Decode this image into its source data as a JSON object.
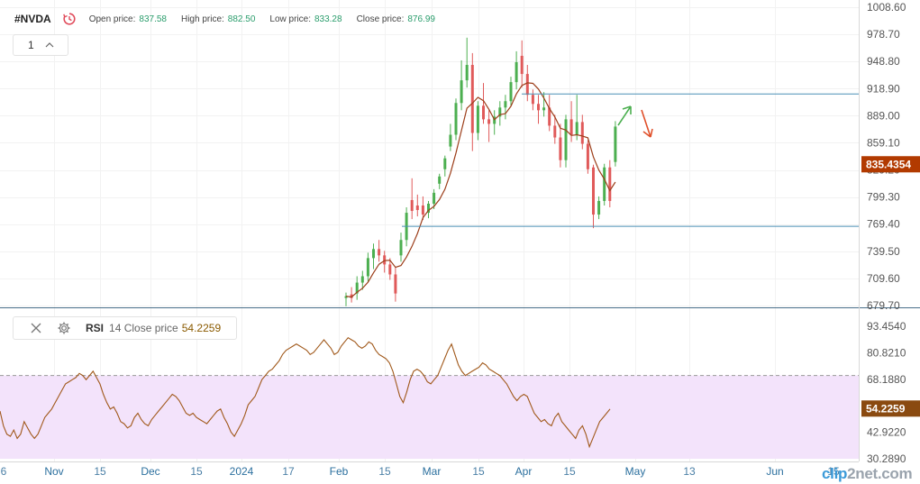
{
  "header": {
    "symbol": "#NVDA",
    "open_label": "Open price:",
    "open_value": "837.58",
    "high_label": "High price:",
    "high_value": "882.50",
    "low_label": "Low price:",
    "low_value": "833.28",
    "close_label": "Close price:",
    "close_value": "876.99"
  },
  "interval": {
    "value": "1"
  },
  "rsi_legend": {
    "name": "RSI",
    "params": "14 Close price",
    "value": "54.2259"
  },
  "brand": {
    "part1": "clip",
    "part2": "2net.com"
  },
  "colors": {
    "up": "#4caf50",
    "down": "#e05a5a",
    "ma": "#9c3e1a",
    "price_tag": "#b23a00",
    "rsi_line": "#a0581a",
    "rsi_band": "#f3e3fb",
    "hline": "#4a8fb5"
  },
  "chart_data": [
    {
      "type": "candlestick",
      "price_axis_ticks": [
        "1008.60",
        "978.70",
        "948.80",
        "918.90",
        "889.00",
        "859.10",
        "829.20",
        "799.30",
        "769.40",
        "739.50",
        "709.60",
        "679.70"
      ],
      "ylim": [
        679.7,
        1008.6
      ],
      "last_price_tag": "835.4354",
      "horizontal_lines": [
        913,
        767
      ],
      "annotations": [
        "up-arrow",
        "down-arrow"
      ],
      "candles": [
        {
          "o": 688,
          "h": 694,
          "l": 679,
          "c": 690
        },
        {
          "o": 692,
          "h": 700,
          "l": 683,
          "c": 688
        },
        {
          "o": 693,
          "h": 712,
          "l": 686,
          "c": 705
        },
        {
          "o": 705,
          "h": 718,
          "l": 697,
          "c": 712
        },
        {
          "o": 712,
          "h": 738,
          "l": 705,
          "c": 732
        },
        {
          "o": 732,
          "h": 748,
          "l": 720,
          "c": 742
        },
        {
          "o": 742,
          "h": 752,
          "l": 728,
          "c": 735
        },
        {
          "o": 735,
          "h": 740,
          "l": 716,
          "c": 725
        },
        {
          "o": 725,
          "h": 732,
          "l": 708,
          "c": 714
        },
        {
          "o": 714,
          "h": 722,
          "l": 684,
          "c": 693
        },
        {
          "o": 735,
          "h": 760,
          "l": 728,
          "c": 752
        },
        {
          "o": 752,
          "h": 788,
          "l": 745,
          "c": 782
        },
        {
          "o": 796,
          "h": 820,
          "l": 775,
          "c": 784
        },
        {
          "o": 790,
          "h": 802,
          "l": 778,
          "c": 785
        },
        {
          "o": 790,
          "h": 800,
          "l": 774,
          "c": 780
        },
        {
          "o": 782,
          "h": 795,
          "l": 776,
          "c": 792
        },
        {
          "o": 792,
          "h": 808,
          "l": 786,
          "c": 804
        },
        {
          "o": 814,
          "h": 825,
          "l": 808,
          "c": 822
        },
        {
          "o": 830,
          "h": 845,
          "l": 822,
          "c": 842
        },
        {
          "o": 855,
          "h": 880,
          "l": 850,
          "c": 868
        },
        {
          "o": 868,
          "h": 908,
          "l": 862,
          "c": 903
        },
        {
          "o": 903,
          "h": 950,
          "l": 895,
          "c": 928
        },
        {
          "o": 928,
          "h": 975,
          "l": 920,
          "c": 945
        },
        {
          "o": 945,
          "h": 958,
          "l": 850,
          "c": 870
        },
        {
          "o": 870,
          "h": 905,
          "l": 862,
          "c": 900
        },
        {
          "o": 900,
          "h": 925,
          "l": 880,
          "c": 885
        },
        {
          "o": 885,
          "h": 895,
          "l": 860,
          "c": 880
        },
        {
          "o": 880,
          "h": 895,
          "l": 868,
          "c": 888
        },
        {
          "o": 888,
          "h": 905,
          "l": 878,
          "c": 898
        },
        {
          "o": 898,
          "h": 912,
          "l": 885,
          "c": 905
        },
        {
          "o": 905,
          "h": 932,
          "l": 900,
          "c": 926
        },
        {
          "o": 926,
          "h": 960,
          "l": 918,
          "c": 948
        },
        {
          "o": 955,
          "h": 972,
          "l": 920,
          "c": 935
        },
        {
          "o": 935,
          "h": 945,
          "l": 905,
          "c": 912
        },
        {
          "o": 912,
          "h": 918,
          "l": 895,
          "c": 902
        },
        {
          "o": 902,
          "h": 912,
          "l": 880,
          "c": 895
        },
        {
          "o": 895,
          "h": 915,
          "l": 888,
          "c": 898
        },
        {
          "o": 898,
          "h": 912,
          "l": 872,
          "c": 878
        },
        {
          "o": 878,
          "h": 890,
          "l": 858,
          "c": 865
        },
        {
          "o": 865,
          "h": 880,
          "l": 832,
          "c": 840
        },
        {
          "o": 840,
          "h": 890,
          "l": 832,
          "c": 885
        },
        {
          "o": 885,
          "h": 905,
          "l": 860,
          "c": 868
        },
        {
          "o": 868,
          "h": 912,
          "l": 862,
          "c": 882
        },
        {
          "o": 882,
          "h": 890,
          "l": 852,
          "c": 858
        },
        {
          "o": 858,
          "h": 862,
          "l": 825,
          "c": 830
        },
        {
          "o": 832,
          "h": 835,
          "l": 765,
          "c": 780
        },
        {
          "o": 780,
          "h": 800,
          "l": 775,
          "c": 795
        },
        {
          "o": 795,
          "h": 836,
          "l": 790,
          "c": 832
        },
        {
          "o": 832,
          "h": 840,
          "l": 788,
          "c": 795
        },
        {
          "o": 838,
          "h": 883,
          "l": 833,
          "c": 877
        }
      ]
    },
    {
      "type": "line",
      "name": "RSI",
      "y_axis_ticks": [
        "93.4540",
        "80.8210",
        "68.1880",
        "55.5550",
        "42.9220",
        "30.2890"
      ],
      "ylim": [
        30.289,
        93.454
      ],
      "overbought_level": 70,
      "last_value_tag": "54.2259",
      "values": [
        53,
        46,
        42,
        41,
        44,
        40,
        42,
        48,
        45,
        42,
        40,
        42,
        46,
        50,
        52,
        54,
        57,
        60,
        63,
        66,
        67,
        68,
        69,
        71,
        70,
        68,
        70,
        72,
        69,
        66,
        61,
        57,
        54,
        55,
        52,
        48,
        47,
        45,
        46,
        50,
        52,
        49,
        47,
        46,
        49,
        51,
        53,
        55,
        57,
        59,
        61,
        60,
        58,
        55,
        52,
        51,
        52,
        50,
        49,
        48,
        47,
        49,
        51,
        53,
        54,
        50,
        47,
        43,
        41,
        44,
        47,
        51,
        56,
        58,
        60,
        64,
        68,
        70,
        72,
        73,
        75,
        77,
        80,
        82,
        83,
        84,
        85,
        84,
        83,
        82,
        80,
        81,
        83,
        85,
        87,
        85,
        83,
        80,
        81,
        84,
        86,
        88,
        87,
        86,
        84,
        83,
        84,
        86,
        85,
        82,
        80,
        79,
        78,
        76,
        72,
        66,
        60,
        57,
        62,
        68,
        72,
        73,
        72,
        70,
        67,
        66,
        68,
        70,
        74,
        78,
        82,
        85,
        80,
        75,
        72,
        70,
        71,
        72,
        73,
        74,
        76,
        75,
        73,
        72,
        71,
        70,
        68,
        66,
        63,
        60,
        58,
        60,
        61,
        60,
        56,
        52,
        50,
        48,
        49,
        47,
        46,
        50,
        52,
        48,
        46,
        44,
        42,
        40,
        44,
        46,
        42,
        36,
        40,
        44,
        48,
        50,
        52,
        54
      ]
    }
  ],
  "x_axis": {
    "labels": [
      "6",
      "Nov",
      "15",
      "Dec",
      "15",
      "2024",
      "17",
      "Feb",
      "15",
      "Mar",
      "15",
      "Apr",
      "15",
      "May",
      "13",
      "Jun",
      "15"
    ],
    "highlight": [
      "Nov",
      "Dec",
      "2024",
      "Feb",
      "Mar",
      "Apr",
      "May",
      "Jun"
    ]
  }
}
